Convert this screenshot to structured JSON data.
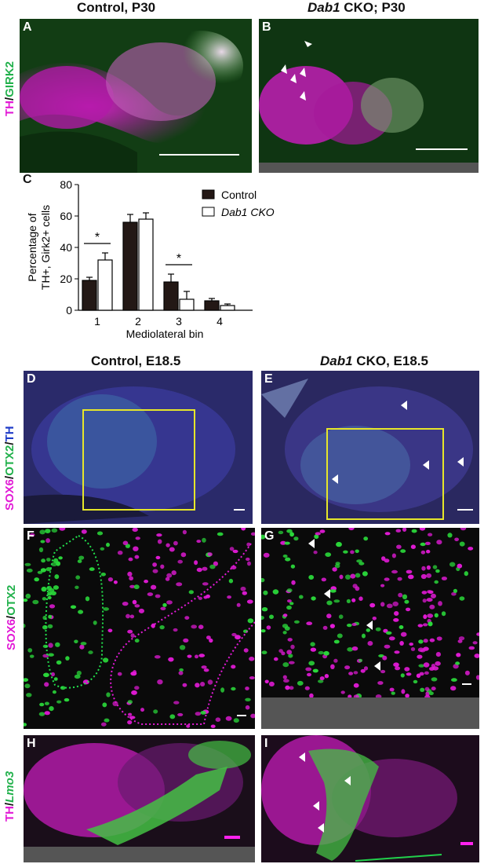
{
  "figure": {
    "top_titles": {
      "left": "Control, P30",
      "right_italic": "Dab1",
      "right_rest": " CKO; P30"
    },
    "mid_titles": {
      "left": "Control, E18.5",
      "right_italic": "Dab1",
      "right_rest": " CKO, E18.5"
    },
    "side_labels": {
      "ab": {
        "part1": "TH",
        "sep": "/",
        "part2": "GIRK2"
      },
      "de": {
        "part1": "SOX6",
        "sep1": "/",
        "part2": "OTX2",
        "sep2": "/",
        "part3": "TH"
      },
      "fg": {
        "part1": "SOX6",
        "sep": "/",
        "part2": "OTX2"
      },
      "hi": {
        "part1": "TH",
        "sep": "/",
        "part2": "Lmo3"
      }
    },
    "panel_letters": [
      "A",
      "B",
      "C",
      "D",
      "E",
      "F",
      "G",
      "H",
      "I"
    ],
    "colors": {
      "magenta": "#e21ad6",
      "green": "#22b14c",
      "blue": "#1e3cc8",
      "yellow": "#e6e62a",
      "scalebar_magenta": "#ff22ee"
    }
  },
  "chart_data": {
    "type": "bar",
    "categories": [
      "1",
      "2",
      "3",
      "4"
    ],
    "series": [
      {
        "name": "Control",
        "values": [
          19,
          56,
          18,
          6
        ],
        "errors": [
          2,
          5,
          5,
          1.5
        ],
        "color": "#231815"
      },
      {
        "name": "Dab1 CKO",
        "values": [
          32,
          58,
          7,
          3
        ],
        "errors": [
          4.5,
          4,
          5,
          1
        ],
        "color": "#ffffff"
      }
    ],
    "xlabel": "Mediolateral bin",
    "ylabel_line1": "Percentage of",
    "ylabel_line2": "TH+, Girk2+ cells",
    "yticks": [
      "0",
      "20",
      "40",
      "60",
      "80"
    ],
    "ylim": [
      0,
      80
    ],
    "significance": [
      {
        "category": "1",
        "label": "*"
      },
      {
        "category": "3",
        "label": "*"
      }
    ],
    "legend": {
      "control": "Control",
      "cko": "Dab1 CKO",
      "placement": "top-right"
    }
  }
}
